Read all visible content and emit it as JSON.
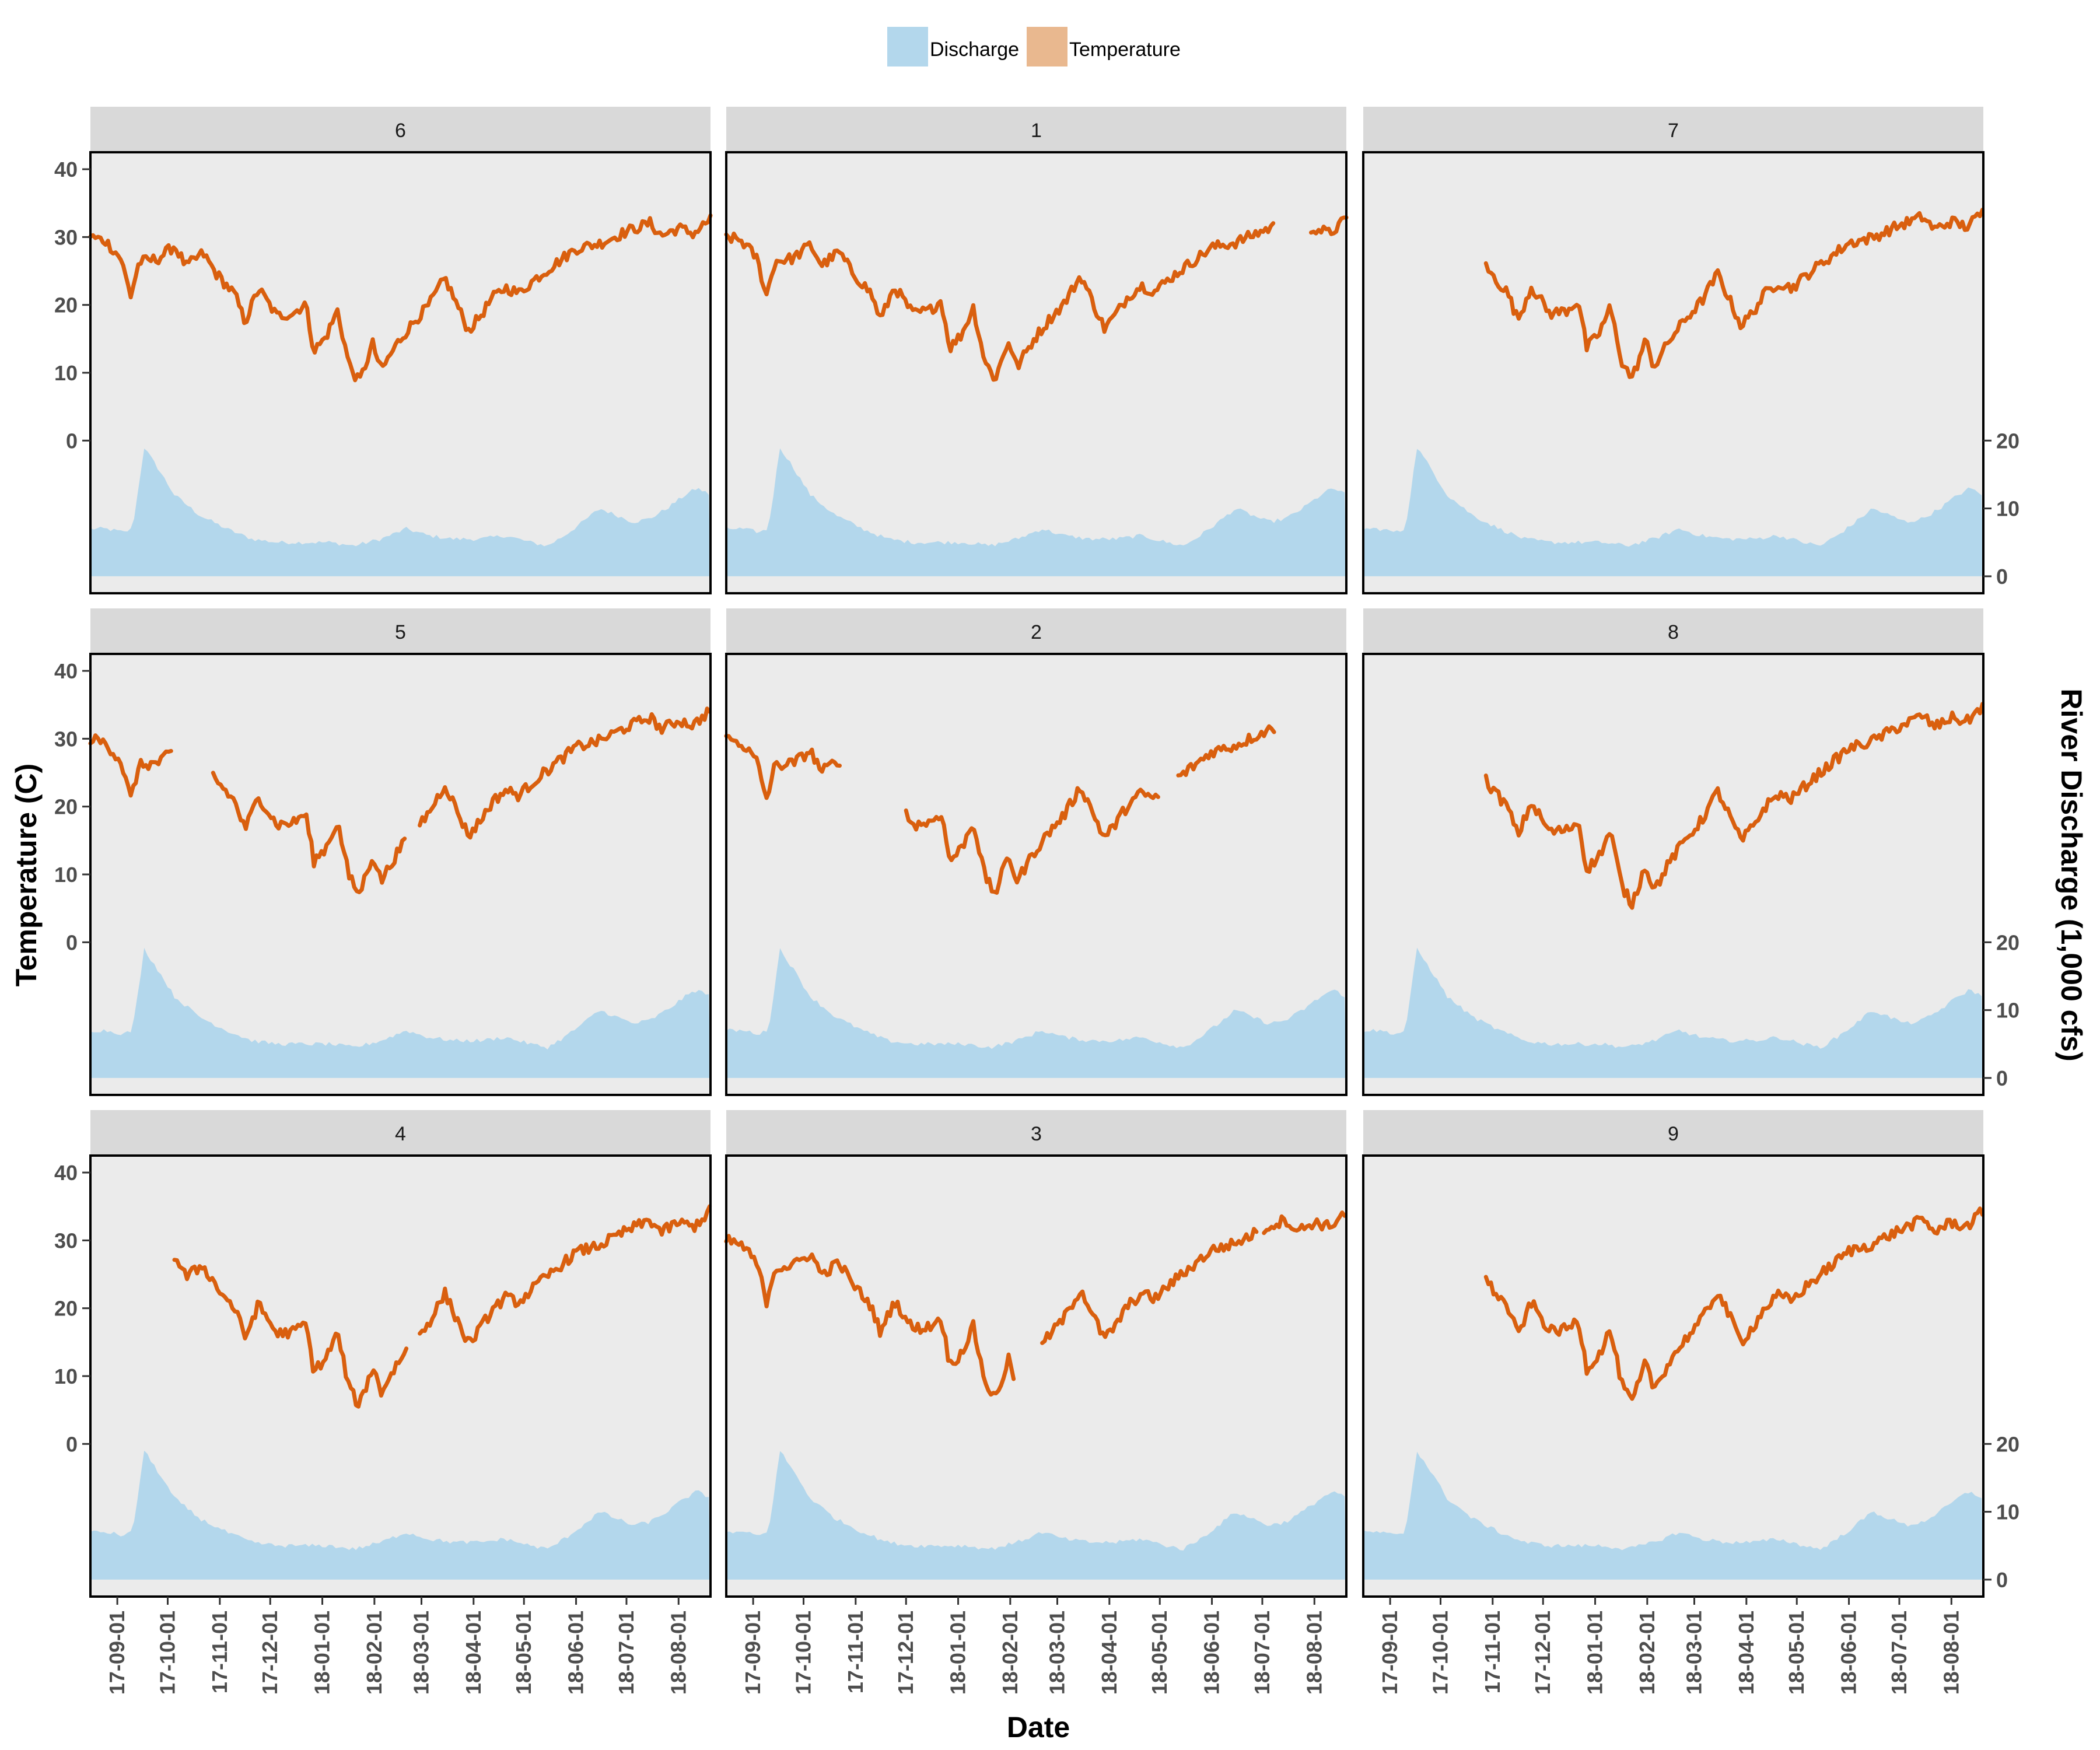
{
  "legend": {
    "items": [
      {
        "label": "Discharge",
        "color": "#b3d7ec"
      },
      {
        "label": "Temperature",
        "color": "#e9b88f"
      }
    ]
  },
  "axes": {
    "x_title": "Date",
    "y_left_title": "Temperature (C)",
    "y_right_title": "River Discharge (1,000 cfs)"
  },
  "colors": {
    "panel_background": "#ebebeb",
    "strip_background": "#d9d9d9",
    "temperature_line": "#d95f0e",
    "discharge_area": "#b3d7ec"
  },
  "chart_data": {
    "type": "line",
    "facets": [
      "6",
      "1",
      "7",
      "5",
      "2",
      "8",
      "4",
      "3",
      "9"
    ],
    "x_ticks": [
      "17-09-01",
      "17-10-01",
      "17-11-01",
      "17-12-01",
      "18-01-01",
      "18-02-01",
      "18-03-01",
      "18-04-01",
      "18-05-01",
      "18-06-01",
      "18-07-01",
      "18-08-01"
    ],
    "x_range": [
      "2017-08-16",
      "2018-08-20"
    ],
    "y_left_ticks": [
      0,
      10,
      20,
      30,
      40
    ],
    "y_right_ticks": [
      0,
      10,
      20
    ],
    "y_range": [
      -22.5,
      42.5
    ],
    "right_axis_relation": "discharge = temperature + 20",
    "series": [
      {
        "name": "Temperature",
        "kind": "line"
      },
      {
        "name": "Discharge",
        "kind": "area",
        "units": "1,000 cfs"
      }
    ],
    "discharge": {
      "dates": [
        "2017-08-16",
        "2017-08-25",
        "2017-09-05",
        "2017-09-10",
        "2017-09-13",
        "2017-09-17",
        "2017-09-25",
        "2017-10-05",
        "2017-10-20",
        "2017-11-05",
        "2017-11-20",
        "2017-12-05",
        "2017-12-20",
        "2018-01-05",
        "2018-01-20",
        "2018-02-05",
        "2018-02-20",
        "2018-03-05",
        "2018-03-20",
        "2018-04-05",
        "2018-04-20",
        "2018-05-05",
        "2018-05-15",
        "2018-05-25",
        "2018-06-05",
        "2018-06-15",
        "2018-06-25",
        "2018-07-05",
        "2018-07-15",
        "2018-07-25",
        "2018-08-05",
        "2018-08-12",
        "2018-08-20"
      ],
      "values": [
        7,
        7,
        6.5,
        7,
        12,
        19,
        16,
        12,
        9,
        7,
        5.5,
        5,
        5,
        5,
        4.5,
        5.5,
        7,
        6,
        5.5,
        5.5,
        6,
        5,
        4.5,
        6,
        8,
        10,
        9,
        8,
        8.5,
        10,
        12,
        13,
        12
      ]
    },
    "temperature": [
      {
        "facet": "6",
        "segments": [
          [
            "2017-08-16",
            "2018-08-20"
          ]
        ],
        "jan_min": 9,
        "aug_max": 30.5
      },
      {
        "facet": "1",
        "segments": [
          [
            "2017-08-16",
            "2018-07-08"
          ],
          [
            "2018-07-30",
            "2018-08-20"
          ]
        ],
        "jan_min": 9.5,
        "aug_max": 30.5
      },
      {
        "facet": "7",
        "segments": [
          [
            "2017-10-28",
            "2018-08-20"
          ]
        ],
        "jan_min": 9.5,
        "aug_max": 31.5
      },
      {
        "facet": "5",
        "segments": [
          [
            "2017-08-16",
            "2017-10-03"
          ],
          [
            "2017-10-28",
            "2018-02-20"
          ],
          [
            "2018-02-28",
            "2018-08-20"
          ]
        ],
        "jan_min": 7.5,
        "aug_max": 32
      },
      {
        "facet": "2",
        "segments": [
          [
            "2017-08-16",
            "2017-10-23"
          ],
          [
            "2017-12-01",
            "2018-04-30"
          ],
          [
            "2018-05-12",
            "2018-07-08"
          ]
        ],
        "jan_min": 7.5,
        "aug_max": 31
      },
      {
        "facet": "8",
        "segments": [
          [
            "2017-10-28",
            "2018-08-20"
          ]
        ],
        "jan_min": 6,
        "aug_max": 32.5
      },
      {
        "facet": "4",
        "segments": [
          [
            "2017-10-05",
            "2018-02-20"
          ],
          [
            "2018-02-28",
            "2018-08-20"
          ]
        ],
        "jan_min": 6,
        "aug_max": 32
      },
      {
        "facet": "3",
        "segments": [
          [
            "2017-08-16",
            "2018-02-03"
          ],
          [
            "2018-02-20",
            "2018-06-28"
          ],
          [
            "2018-07-02",
            "2018-08-20"
          ]
        ],
        "jan_min": 7,
        "aug_max": 32
      },
      {
        "facet": "9",
        "segments": [
          [
            "2017-10-28",
            "2018-08-20"
          ]
        ],
        "jan_min": 6.5,
        "aug_max": 32
      }
    ]
  }
}
